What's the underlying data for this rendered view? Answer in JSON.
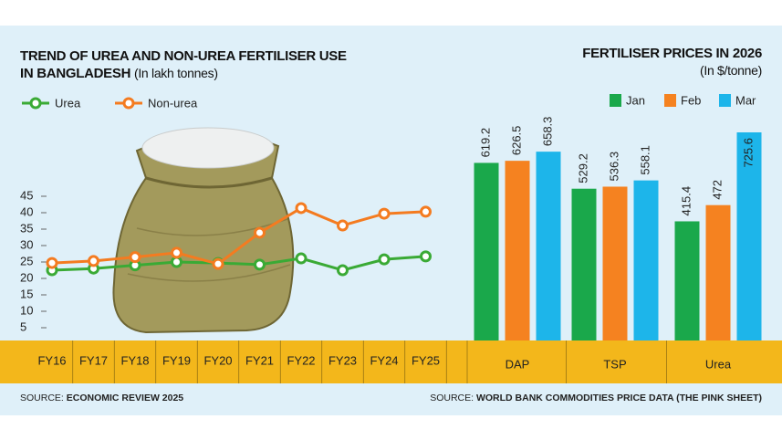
{
  "chart_data": [
    {
      "type": "line",
      "title": "TREND OF UREA AND NON-UREA FERTILISER USE IN BANGLADESH",
      "subtitle": "(In lakh tonnes)",
      "categories": [
        "FY16",
        "FY17",
        "FY18",
        "FY19",
        "FY20",
        "FY21",
        "FY22",
        "FY23",
        "FY24",
        "FY25"
      ],
      "series": [
        {
          "name": "Urea",
          "color": "#3aaa35",
          "values": [
            22.5,
            23,
            24,
            25,
            24.7,
            24.2,
            26.1,
            22.5,
            25.8,
            26.7
          ]
        },
        {
          "name": "Non-urea",
          "color": "#f47b20",
          "values": [
            24.7,
            25.3,
            26.5,
            27.8,
            24.4,
            33.9,
            41.4,
            36.1,
            39.7,
            40.3
          ]
        }
      ],
      "ylim": [
        0,
        45
      ],
      "yticks": [
        5,
        10,
        15,
        20,
        25,
        30,
        35,
        40,
        45
      ],
      "source": {
        "label": "SOURCE:",
        "text": "ECONOMIC REVIEW 2025"
      }
    },
    {
      "type": "bar",
      "title": "FERTILISER PRICES IN 2026",
      "subtitle": "(In $/tonne)",
      "categories": [
        "DAP",
        "TSP",
        "Urea"
      ],
      "series": [
        {
          "name": "Jan",
          "color": "#1aa84b",
          "values": [
            619.2,
            529.2,
            415.4
          ]
        },
        {
          "name": "Feb",
          "color": "#f58220",
          "values": [
            626.5,
            536.3,
            472
          ]
        },
        {
          "name": "Mar",
          "color": "#1db5ea",
          "values": [
            658.3,
            558.1,
            725.6
          ]
        }
      ],
      "source": {
        "label": "SOURCE:",
        "text": "WORLD BANK COMMODITIES PRICE DATA (THE PINK SHEET)"
      }
    }
  ]
}
